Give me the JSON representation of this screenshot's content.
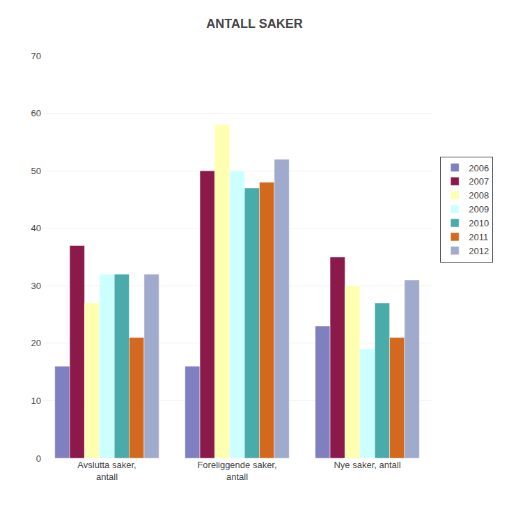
{
  "chart_data": {
    "type": "bar",
    "title": "ANTALL SAKER",
    "categories": [
      "Avslutta saker,\nantall",
      "Foreliggende saker,\nantall",
      "Nye saker, antall"
    ],
    "series": [
      {
        "name": "2006",
        "color": "#8080c0",
        "values": [
          16,
          16,
          23
        ]
      },
      {
        "name": "2007",
        "color": "#8B1A4A",
        "values": [
          37,
          50,
          35
        ]
      },
      {
        "name": "2008",
        "color": "#FFFFB0",
        "values": [
          27,
          58,
          30
        ]
      },
      {
        "name": "2009",
        "color": "#CCFFFF",
        "values": [
          32,
          50,
          19
        ]
      },
      {
        "name": "2010",
        "color": "#4AABAB",
        "values": [
          32,
          47,
          27
        ]
      },
      {
        "name": "2011",
        "color": "#D2691E",
        "values": [
          21,
          48,
          21
        ]
      },
      {
        "name": "2012",
        "color": "#A0AACC",
        "values": [
          32,
          52,
          31
        ]
      }
    ],
    "ylim": [
      0,
      70
    ],
    "yticks": [
      0,
      10,
      20,
      30,
      40,
      50,
      60,
      70
    ],
    "grid": true,
    "legend": "right"
  }
}
